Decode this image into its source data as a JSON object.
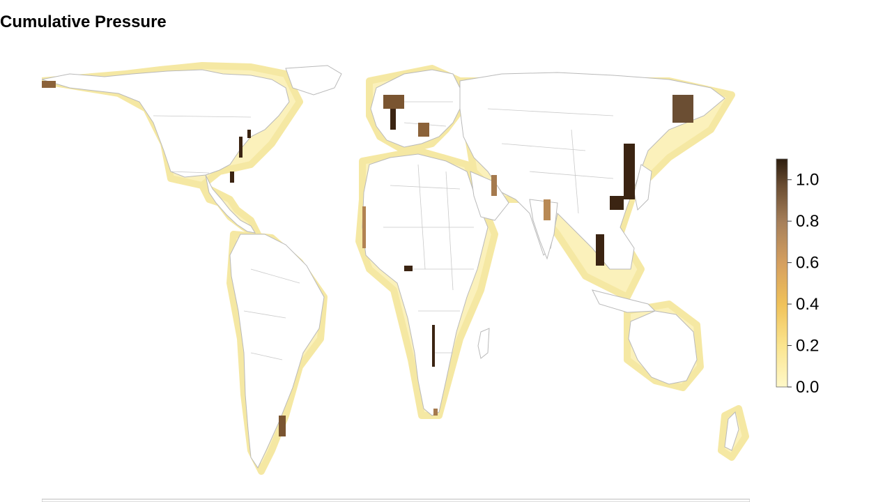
{
  "title": "Cumulative Pressure",
  "legend": {
    "ticks": [
      "0.0",
      "0.2",
      "0.4",
      "0.6",
      "0.8",
      "1.0"
    ],
    "tick_values": [
      0.0,
      0.2,
      0.4,
      0.6,
      0.8,
      1.0
    ],
    "min": 0.0,
    "max": 1.1,
    "color_stops": [
      "#fff8c8",
      "#fbe58f",
      "#f0c25a",
      "#d6a05f",
      "#a7805a",
      "#6b4e33",
      "#2d1d0e"
    ]
  },
  "map": {
    "background": "#ffffff",
    "border_color": "#bbbbbb",
    "coast_halo_color": "#f7eba6"
  }
}
